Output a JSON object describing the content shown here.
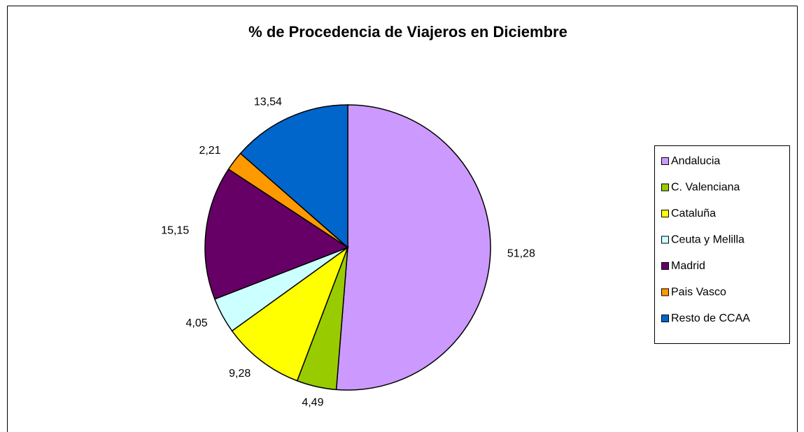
{
  "chart_data": {
    "type": "pie",
    "title": "% de Procedencia de Viajeros en Diciembre",
    "categories": [
      "Andalucia",
      "C. Valenciana",
      "Cataluña",
      "Ceuta y Melilla",
      "Madrid",
      "Pais Vasco",
      "Resto de CCAA"
    ],
    "values": [
      51.28,
      4.49,
      9.28,
      4.05,
      15.15,
      2.21,
      13.54
    ],
    "value_labels": [
      "51,28",
      "4,49",
      "9,28",
      "4,05",
      "15,15",
      "2,21",
      "13,54"
    ],
    "colors": [
      "#cc99ff",
      "#99cc00",
      "#ffff00",
      "#ccffff",
      "#660066",
      "#ff9900",
      "#0066cc"
    ],
    "legend": "right"
  }
}
